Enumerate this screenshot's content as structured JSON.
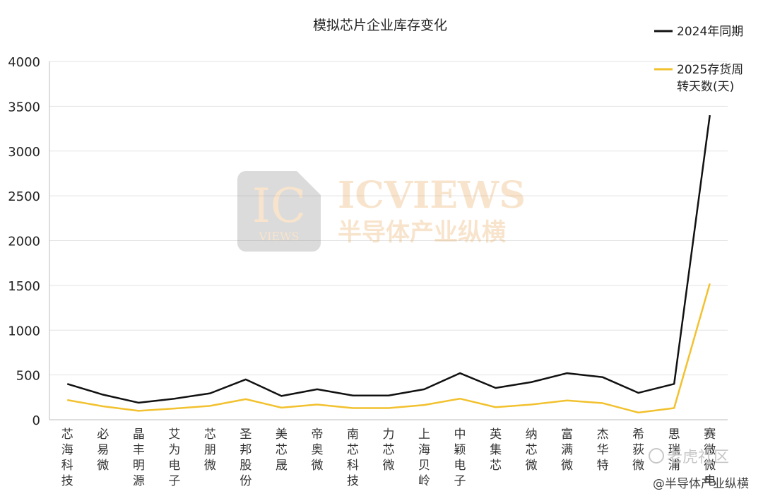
{
  "chart_data": {
    "type": "line",
    "title": "模拟芯片企业库存变化",
    "categories": [
      "芯海科技",
      "必易微",
      "晶丰明源",
      "艾为电子",
      "芯朋微",
      "圣邦股份",
      "美芯晟",
      "帝奥微",
      "南芯科技",
      "力芯微",
      "上海贝岭",
      "中颖电子",
      "英集芯",
      "纳芯微",
      "富满微",
      "杰华特",
      "希荻微",
      "思瑞浦",
      "赛微微电"
    ],
    "series": [
      {
        "name": "2024年同期",
        "color": "#111111",
        "values": [
          400,
          280,
          190,
          235,
          295,
          450,
          265,
          340,
          270,
          270,
          340,
          520,
          355,
          420,
          520,
          475,
          300,
          400,
          3400
        ]
      },
      {
        "name": "2025存货周转天数(天)",
        "color": "#F2C12E",
        "values": [
          220,
          150,
          100,
          125,
          155,
          230,
          135,
          170,
          130,
          130,
          165,
          235,
          140,
          170,
          215,
          185,
          80,
          130,
          1520
        ]
      }
    ],
    "yticks": [
      0,
      500,
      1000,
      1500,
      2000,
      2500,
      3000,
      3500,
      4000
    ],
    "ylim": [
      0,
      4000
    ],
    "grid": true,
    "legend": "top-right"
  },
  "watermark": {
    "logo_big": "IC",
    "logo_small": "VIEWS",
    "brand_en": "ICVIEWS",
    "brand_cn": "半导体产业纵横"
  },
  "footer": {
    "community": "老虎社区",
    "credit": "@半导体产业纵横"
  }
}
